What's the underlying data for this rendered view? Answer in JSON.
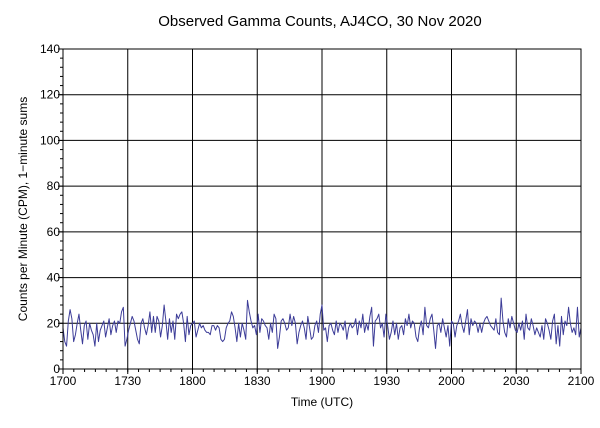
{
  "chart_data": {
    "type": "line",
    "title": "Observed Gamma Counts, AJ4CO, 30 Nov 2020",
    "xlabel": "Time (UTC)",
    "ylabel": "Counts per Minute (CPM), 1−minute sums",
    "xlim": [
      "1700",
      "2100"
    ],
    "ylim": [
      0,
      140
    ],
    "x_ticks": [
      "1700",
      "1730",
      "1800",
      "1830",
      "1900",
      "1930",
      "2000",
      "2030",
      "2100"
    ],
    "y_ticks": [
      0,
      20,
      40,
      60,
      80,
      100,
      120,
      140
    ],
    "grid": true,
    "colors": {
      "series": "#3c3c98",
      "grid": "#000000"
    },
    "series": [
      {
        "x_start": "1700",
        "x_end": "2100",
        "values": [
          18,
          12,
          10,
          21,
          26,
          22,
          12,
          15,
          20,
          24,
          17,
          11,
          19,
          21,
          13,
          20,
          17,
          15,
          10,
          20,
          12,
          17,
          19,
          21,
          14,
          18,
          22,
          15,
          19,
          21,
          16,
          21,
          20,
          25,
          27,
          10,
          13,
          17,
          20,
          23,
          21,
          17,
          13,
          11,
          20,
          22,
          18,
          15,
          19,
          25,
          16,
          23,
          16,
          23,
          21,
          14,
          19,
          28,
          21,
          13,
          22,
          16,
          21,
          13,
          24,
          22,
          24,
          25,
          20,
          12,
          23,
          15,
          19,
          20,
          21,
          14,
          17,
          20,
          18,
          19,
          17,
          16,
          16,
          15,
          19,
          19,
          17,
          19,
          18,
          13,
          12,
          13,
          18,
          20,
          21,
          25,
          23,
          18,
          12,
          20,
          14,
          20,
          17,
          13,
          30,
          25,
          21,
          18,
          19,
          15,
          24,
          16,
          22,
          21,
          19,
          18,
          13,
          20,
          16,
          24,
          22,
          9,
          14,
          21,
          22,
          20,
          17,
          18,
          24,
          19,
          23,
          20,
          11,
          16,
          19,
          21,
          18,
          13,
          23,
          18,
          13,
          14,
          19,
          21,
          16,
          24,
          28,
          17,
          18,
          12,
          19,
          20,
          17,
          15,
          21,
          16,
          20,
          19,
          17,
          21,
          13,
          18,
          20,
          18,
          19,
          22,
          15,
          21,
          18,
          24,
          16,
          20,
          17,
          23,
          27,
          10,
          21,
          22,
          24,
          18,
          20,
          14,
          24,
          19,
          13,
          16,
          21,
          15,
          20,
          13,
          18,
          19,
          15,
          22,
          19,
          24,
          18,
          21,
          20,
          14,
          12,
          18,
          21,
          15,
          27,
          19,
          18,
          22,
          24,
          17,
          9,
          19,
          20,
          16,
          22,
          18,
          14,
          19,
          10,
          21,
          20,
          14,
          19,
          21,
          24,
          19,
          16,
          21,
          26,
          15,
          22,
          19,
          21,
          20,
          16,
          20,
          16,
          20,
          22,
          23,
          21,
          19,
          18,
          17,
          22,
          16,
          15,
          31,
          21,
          16,
          14,
          22,
          18,
          23,
          20,
          17,
          16,
          20,
          17,
          21,
          13,
          24,
          18,
          17,
          22,
          19,
          15,
          18,
          16,
          14,
          19,
          13,
          22,
          20,
          17,
          13,
          21,
          24,
          11,
          19,
          10,
          23,
          15,
          21,
          19,
          27,
          20,
          16,
          18,
          15,
          27,
          14,
          18
        ]
      }
    ]
  }
}
